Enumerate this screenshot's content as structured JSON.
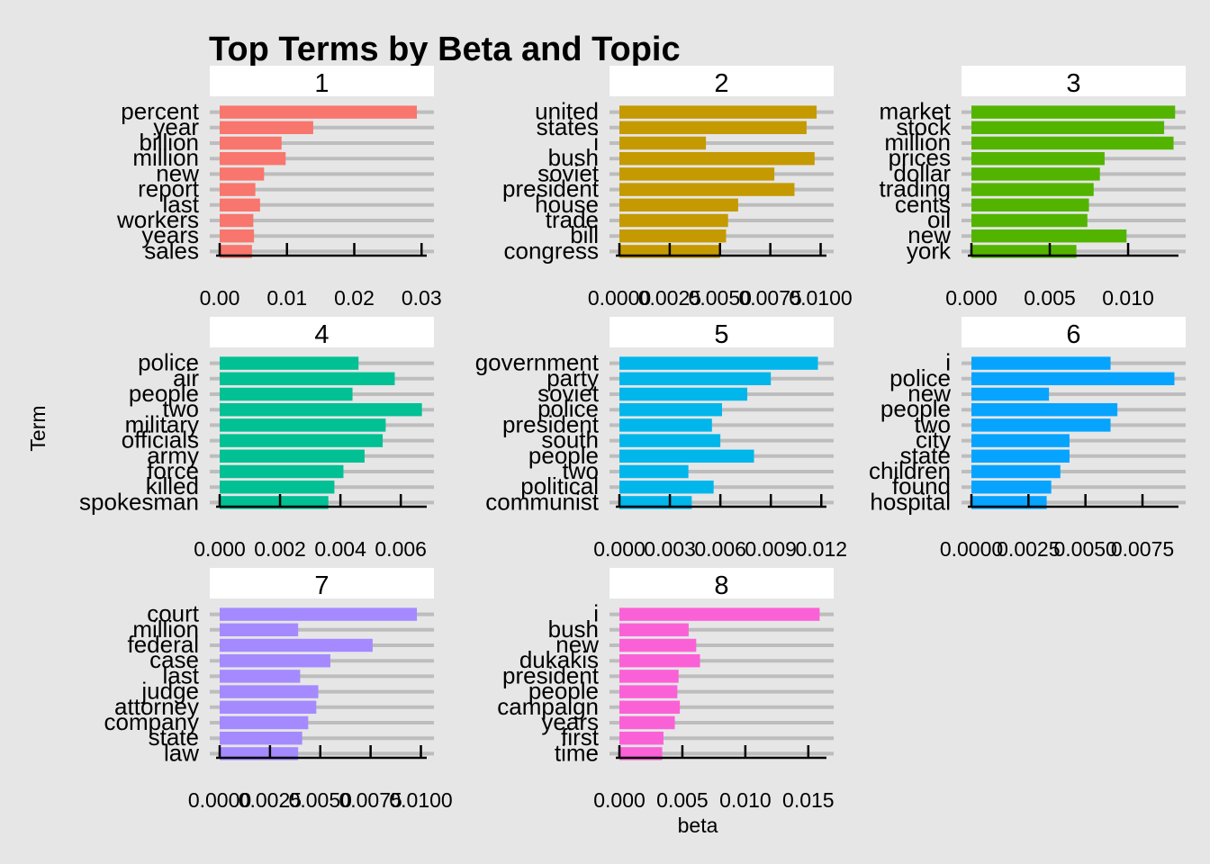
{
  "chart_data": {
    "type": "bar",
    "orientation": "horizontal",
    "title": "Top Terms by Beta and Topic",
    "xlabel": "beta",
    "ylabel": "Term",
    "facet_layout": "3x3 grid, free scales",
    "grid": true,
    "facets": [
      {
        "topic": "1",
        "color": "#F8766D",
        "xlim": [
          0,
          0.0305
        ],
        "ticks": [
          0,
          0.01,
          0.02,
          0.03
        ],
        "tick_labels": [
          "0.00",
          "0.01",
          "0.02",
          "0.03"
        ],
        "terms": [
          "percent",
          "year",
          "billion",
          "million",
          "new",
          "report",
          "last",
          "workers",
          "years",
          "sales"
        ],
        "values": [
          0.0293,
          0.0139,
          0.0092,
          0.0098,
          0.0066,
          0.0053,
          0.006,
          0.005,
          0.0051,
          0.0048
        ]
      },
      {
        "topic": "2",
        "color": "#C49A00",
        "xlim": [
          0,
          0.0102
        ],
        "ticks": [
          0,
          0.0025,
          0.005,
          0.0075,
          0.01
        ],
        "tick_labels": [
          "0.0000",
          "0.0025",
          "0.0050",
          "0.0075",
          "0.0100"
        ],
        "terms": [
          "united",
          "states",
          "i",
          "bush",
          "soviet",
          "president",
          "house",
          "trade",
          "bill",
          "congress"
        ],
        "values": [
          0.0098,
          0.0093,
          0.0043,
          0.0097,
          0.0077,
          0.0087,
          0.0059,
          0.0054,
          0.0053,
          0.005
        ]
      },
      {
        "topic": "3",
        "color": "#53B400",
        "xlim": [
          0,
          0.0131
        ],
        "ticks": [
          0,
          0.005,
          0.01
        ],
        "tick_labels": [
          "0.000",
          "0.005",
          "0.010"
        ],
        "terms": [
          "market",
          "stock",
          "million",
          "prices",
          "dollar",
          "trading",
          "cents",
          "oil",
          "new",
          "york"
        ],
        "values": [
          0.013,
          0.0123,
          0.0129,
          0.0085,
          0.0082,
          0.0078,
          0.0075,
          0.0074,
          0.0099,
          0.0067
        ]
      },
      {
        "topic": "4",
        "color": "#00C094",
        "xlim": [
          0,
          0.0068
        ],
        "ticks": [
          0,
          0.002,
          0.004,
          0.006
        ],
        "tick_labels": [
          "0.000",
          "0.002",
          "0.004",
          "0.006"
        ],
        "terms": [
          "police",
          "air",
          "people",
          "two",
          "military",
          "officials",
          "army",
          "force",
          "killed",
          "spokesman"
        ],
        "values": [
          0.0046,
          0.0058,
          0.0044,
          0.0067,
          0.0055,
          0.0054,
          0.0048,
          0.0041,
          0.0038,
          0.0036
        ]
      },
      {
        "topic": "5",
        "color": "#00B6EB",
        "xlim": [
          0,
          0.0122
        ],
        "ticks": [
          0,
          0.003,
          0.006,
          0.009,
          0.012
        ],
        "tick_labels": [
          "0.000",
          "0.003",
          "0.006",
          "0.009",
          "0.012"
        ],
        "terms": [
          "government",
          "party",
          "soviet",
          "police",
          "president",
          "south",
          "people",
          "two",
          "political",
          "communist"
        ],
        "values": [
          0.0118,
          0.009,
          0.0076,
          0.0061,
          0.0055,
          0.006,
          0.008,
          0.0041,
          0.0056,
          0.0043
        ]
      },
      {
        "topic": "6",
        "color": "#06A4FF",
        "xlim": [
          0,
          0.009
        ],
        "ticks": [
          0,
          0.0025,
          0.005,
          0.0075
        ],
        "tick_labels": [
          "0.0000",
          "0.0025",
          "0.0050",
          "0.0075"
        ],
        "terms": [
          "i",
          "police",
          "new",
          "people",
          "two",
          "city",
          "state",
          "children",
          "found",
          "hospital"
        ],
        "values": [
          0.0061,
          0.0089,
          0.0034,
          0.0064,
          0.0061,
          0.0043,
          0.0043,
          0.0039,
          0.0035,
          0.0033
        ]
      },
      {
        "topic": "7",
        "color": "#A58AFF",
        "xlim": [
          0,
          0.0102
        ],
        "ticks": [
          0,
          0.0025,
          0.005,
          0.0075,
          0.01
        ],
        "tick_labels": [
          "0.0000",
          "0.0025",
          "0.0050",
          "0.0075",
          "0.0100"
        ],
        "terms": [
          "court",
          "million",
          "federal",
          "case",
          "last",
          "judge",
          "attorney",
          "company",
          "state",
          "law"
        ],
        "values": [
          0.0098,
          0.0039,
          0.0076,
          0.0055,
          0.004,
          0.0049,
          0.0048,
          0.0044,
          0.0041,
          0.0039
        ]
      },
      {
        "topic": "8",
        "color": "#FB61D7",
        "xlim": [
          0,
          0.0163
        ],
        "ticks": [
          0,
          0.005,
          0.01,
          0.015
        ],
        "tick_labels": [
          "0.000",
          "0.005",
          "0.010",
          "0.015"
        ],
        "terms": [
          "i",
          "bush",
          "new",
          "dukakis",
          "president",
          "people",
          "campaign",
          "years",
          "first",
          "time"
        ],
        "values": [
          0.0159,
          0.0055,
          0.0061,
          0.0064,
          0.0047,
          0.0046,
          0.0048,
          0.0044,
          0.0035,
          0.0034
        ]
      }
    ]
  }
}
